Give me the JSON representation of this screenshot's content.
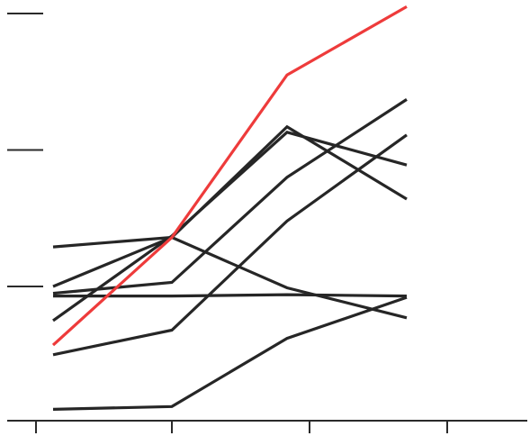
{
  "chart_data": {
    "type": "line",
    "title": "",
    "xlabel": "",
    "ylabel": "",
    "x": [
      0,
      1,
      2,
      3
    ],
    "xlim": [
      -0.1,
      3.6
    ],
    "ylim": [
      -0.95,
      2.05
    ],
    "yticks": [
      0,
      1,
      2
    ],
    "xticks": [
      -0.1,
      1,
      2,
      3
    ],
    "grid": false,
    "legend": "none",
    "series": [
      {
        "values": [
          -0.9,
          -0.88,
          -0.38,
          -0.08
        ],
        "color": "#262626"
      },
      {
        "values": [
          -0.5,
          -0.32,
          0.48,
          1.11
        ],
        "color": "#262626"
      },
      {
        "values": [
          -0.05,
          0.03,
          0.8,
          1.37
        ],
        "color": "#262626"
      },
      {
        "values": [
          0.0,
          0.36,
          1.17,
          0.64
        ],
        "color": "#262626"
      },
      {
        "values": [
          -0.25,
          0.37,
          1.13,
          0.89
        ],
        "color": "#262626"
      },
      {
        "values": [
          0.29,
          0.36,
          -0.01,
          -0.23
        ],
        "color": "#262626"
      },
      {
        "values": [
          -0.07,
          -0.07,
          -0.06,
          -0.07
        ],
        "color": "#262626"
      },
      {
        "values": [
          -0.43,
          0.36,
          1.55,
          2.05
        ],
        "color": "#ee3b3b"
      }
    ]
  }
}
